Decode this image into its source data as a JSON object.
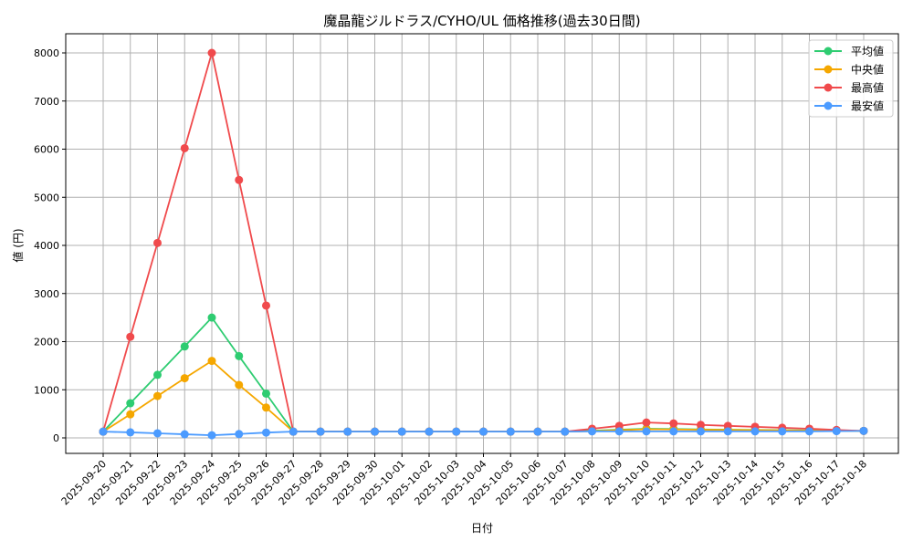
{
  "chart_data": {
    "type": "line",
    "title": "魔晶龍ジルドラス/CYHO/UL 価格推移(過去30日間)",
    "xlabel": "日付",
    "ylabel": "値 (円)",
    "ylim": [
      -330,
      8400
    ],
    "yticks": [
      0,
      1000,
      2000,
      3000,
      4000,
      5000,
      6000,
      7000,
      8000
    ],
    "grid": true,
    "legend_position": "upper right",
    "x": [
      "2025-09-20",
      "2025-09-21",
      "2025-09-22",
      "2025-09-23",
      "2025-09-24",
      "2025-09-25",
      "2025-09-26",
      "2025-09-27",
      "2025-09-28",
      "2025-09-29",
      "2025-09-30",
      "2025-10-01",
      "2025-10-02",
      "2025-10-03",
      "2025-10-04",
      "2025-10-05",
      "2025-10-06",
      "2025-10-07",
      "2025-10-08",
      "2025-10-09",
      "2025-10-10",
      "2025-10-11",
      "2025-10-12",
      "2025-10-13",
      "2025-10-14",
      "2025-10-15",
      "2025-10-16",
      "2025-10-17",
      "2025-10-18"
    ],
    "series": [
      {
        "name": "平均値",
        "color": "#2ecc71",
        "values": [
          130,
          720,
          1310,
          1900,
          2500,
          1700,
          920,
          130,
          130,
          130,
          130,
          130,
          130,
          130,
          130,
          130,
          130,
          130,
          150,
          170,
          190,
          185,
          175,
          170,
          165,
          160,
          155,
          150,
          145
        ]
      },
      {
        "name": "中央値",
        "color": "#f5a700",
        "values": [
          130,
          490,
          870,
          1240,
          1600,
          1100,
          630,
          130,
          130,
          130,
          130,
          130,
          130,
          130,
          130,
          130,
          130,
          130,
          140,
          160,
          180,
          175,
          170,
          165,
          160,
          155,
          150,
          148,
          145
        ]
      },
      {
        "name": "最高値",
        "color": "#f04a4c",
        "values": [
          130,
          2100,
          4050,
          6020,
          8000,
          5360,
          2750,
          130,
          130,
          130,
          130,
          130,
          130,
          130,
          130,
          130,
          130,
          130,
          190,
          250,
          320,
          300,
          270,
          250,
          230,
          210,
          190,
          165,
          145
        ]
      },
      {
        "name": "最安値",
        "color": "#4b9bff",
        "values": [
          130,
          115,
          95,
          75,
          55,
          80,
          110,
          130,
          130,
          130,
          130,
          130,
          130,
          130,
          130,
          130,
          130,
          130,
          135,
          135,
          135,
          135,
          135,
          135,
          135,
          135,
          135,
          140,
          145
        ]
      }
    ]
  }
}
